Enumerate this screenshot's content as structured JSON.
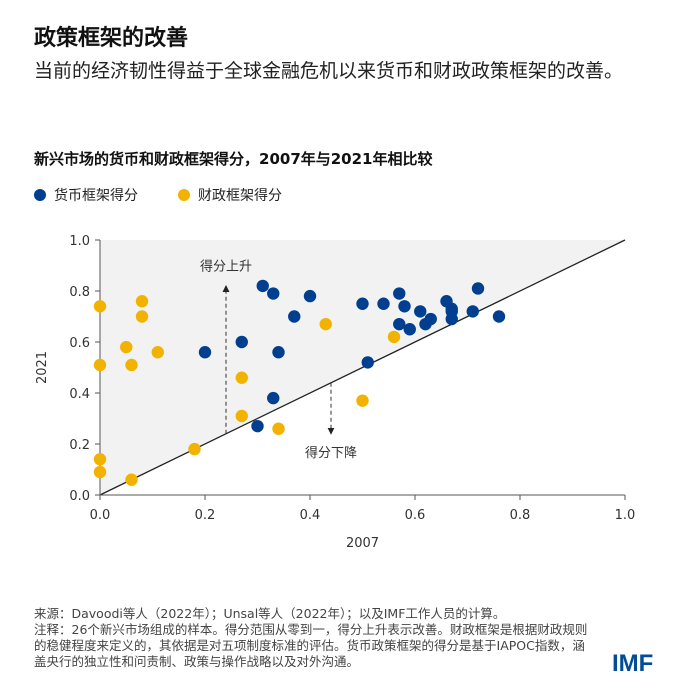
{
  "header": {
    "title": "政策框架的改善",
    "subtitle": "当前的经济韧性得益于全球金融危机以来货币和财政政策框架的改善。"
  },
  "chart_data": {
    "type": "scatter",
    "title": "新兴市场的货币和财政框架得分，2007年与2021年相比较",
    "xlabel": "2007",
    "ylabel": "2021",
    "xlim": [
      0,
      1
    ],
    "ylim": [
      0,
      1
    ],
    "xticks": [
      "0.0",
      "0.2",
      "0.4",
      "0.6",
      "0.8",
      "1.0"
    ],
    "yticks": [
      "0.0",
      "0.2",
      "0.4",
      "0.6",
      "0.8",
      "1.0"
    ],
    "legend_placement": "top-left",
    "grid": false,
    "reference_line": "y = x",
    "annotations": {
      "up": "得分上升",
      "down": "得分下降"
    },
    "series": [
      {
        "name": "货币框架得分",
        "color": "#003f8f",
        "points": [
          [
            0.2,
            0.56
          ],
          [
            0.31,
            0.82
          ],
          [
            0.33,
            0.79
          ],
          [
            0.34,
            0.56
          ],
          [
            0.33,
            0.38
          ],
          [
            0.3,
            0.27
          ],
          [
            0.37,
            0.7
          ],
          [
            0.4,
            0.78
          ],
          [
            0.27,
            0.6
          ],
          [
            0.5,
            0.75
          ],
          [
            0.51,
            0.52
          ],
          [
            0.54,
            0.75
          ],
          [
            0.57,
            0.79
          ],
          [
            0.58,
            0.74
          ],
          [
            0.57,
            0.67
          ],
          [
            0.59,
            0.65
          ],
          [
            0.61,
            0.72
          ],
          [
            0.62,
            0.67
          ],
          [
            0.63,
            0.69
          ],
          [
            0.66,
            0.76
          ],
          [
            0.67,
            0.73
          ],
          [
            0.67,
            0.72
          ],
          [
            0.67,
            0.69
          ],
          [
            0.71,
            0.72
          ],
          [
            0.72,
            0.81
          ],
          [
            0.76,
            0.7
          ]
        ]
      },
      {
        "name": "财政框架得分",
        "color": "#f2b300",
        "points": [
          [
            0.0,
            0.74
          ],
          [
            0.08,
            0.76
          ],
          [
            0.08,
            0.7
          ],
          [
            0.05,
            0.58
          ],
          [
            0.06,
            0.51
          ],
          [
            0.11,
            0.56
          ],
          [
            0.0,
            0.51
          ],
          [
            0.27,
            0.46
          ],
          [
            0.27,
            0.31
          ],
          [
            0.34,
            0.26
          ],
          [
            0.18,
            0.18
          ],
          [
            0.0,
            0.14
          ],
          [
            0.0,
            0.09
          ],
          [
            0.06,
            0.06
          ],
          [
            0.43,
            0.67
          ],
          [
            0.56,
            0.62
          ],
          [
            0.5,
            0.37
          ]
        ]
      }
    ]
  },
  "notes": {
    "source": "来源：Davoodi等人（2022年）；Unsal等人（2022年）；以及IMF工作人员的计算。",
    "note": "注释：26个新兴市场组成的样本。得分范围从零到一，得分上升表示改善。财政框架是根据财政规则的稳健程度来定义的，其依据是对五项制度标准的评估。货币政策框架的得分是基于IAPOC指数，涵盖央行的独立性和问责制、政策与操作战略以及对外沟通。"
  },
  "logo": "IMF"
}
